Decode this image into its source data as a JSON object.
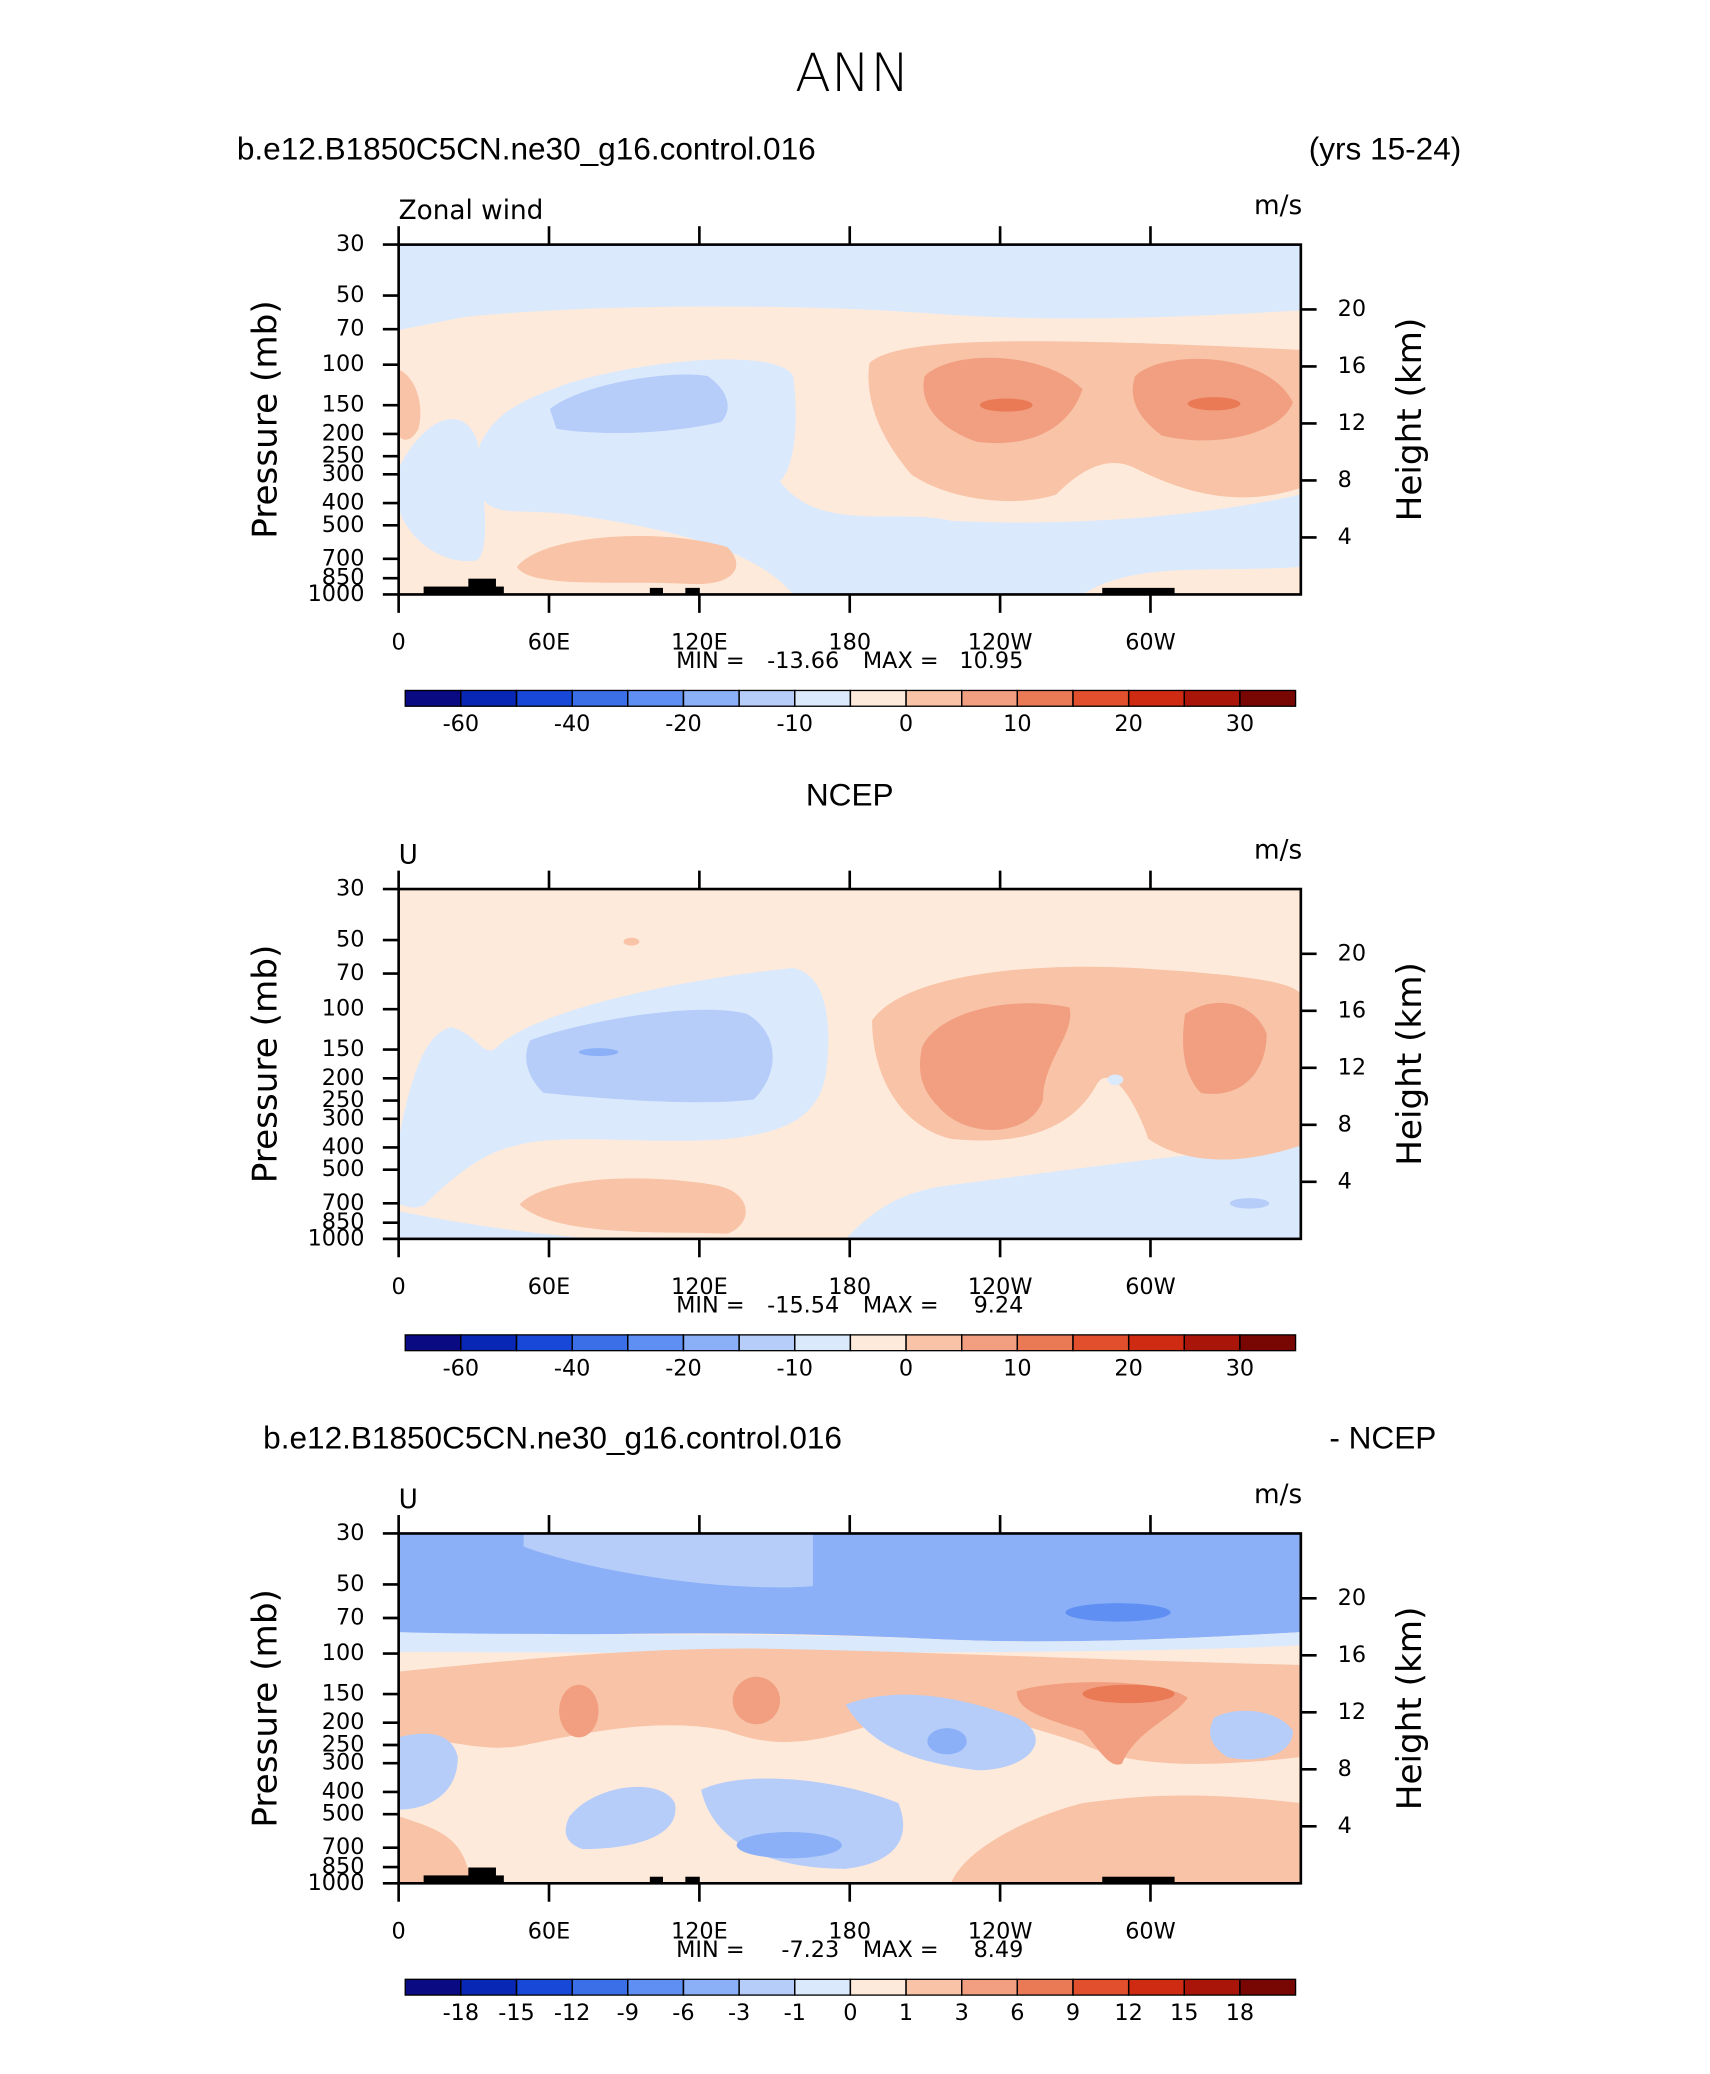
{
  "title": "ANN",
  "chart_data": [
    {
      "type": "contour",
      "title_left": "b.e12.B1850C5CN.ne30_g16.control.016",
      "title_right": "(yrs 15-24)",
      "label_left": "Zonal wind",
      "units": "m/s",
      "ylabel": "Pressure (mb)",
      "y2label": "Height (km)",
      "xlim": [
        0,
        360
      ],
      "xticks": [
        0,
        {
          "value": 60,
          "label": "60E"
        },
        {
          "value": 120,
          "label": "120E"
        },
        180,
        {
          "value": 240,
          "label": "120W"
        },
        {
          "value": 300,
          "label": "60W"
        }
      ],
      "ylim": [
        1000,
        30
      ],
      "ylog": true,
      "yticks": [
        30,
        50,
        70,
        100,
        150,
        200,
        250,
        300,
        400,
        500,
        700,
        850,
        1000
      ],
      "y2ticks": [
        4,
        8,
        12,
        16,
        20
      ],
      "min_label": "MIN =",
      "min": -13.66,
      "max_label": "MAX =",
      "max": 10.95,
      "colorbar": {
        "levels": [
          -60,
          -50,
          -40,
          -30,
          -20,
          -15,
          -10,
          -5,
          0,
          5,
          10,
          15,
          20,
          25,
          30
        ],
        "label_every": 2,
        "colors": [
          "#0a0a82",
          "#0727b4",
          "#1848d8",
          "#3a6fe8",
          "#5f8ff2",
          "#8bb0f7",
          "#b6cdfa",
          "#dbe9fc",
          "#feeadb",
          "#f8c3a6",
          "#f19f80",
          "#ea7a56",
          "#e24f2d",
          "#cf2a12",
          "#a91508",
          "#780603"
        ]
      }
    },
    {
      "type": "contour",
      "title": "NCEP",
      "label_left": "U",
      "units": "m/s",
      "ylabel": "Pressure (mb)",
      "y2label": "Height (km)",
      "xlim": [
        0,
        360
      ],
      "xticks": [
        0,
        {
          "value": 60,
          "label": "60E"
        },
        {
          "value": 120,
          "label": "120E"
        },
        180,
        {
          "value": 240,
          "label": "120W"
        },
        {
          "value": 300,
          "label": "60W"
        }
      ],
      "ylim": [
        1000,
        30
      ],
      "ylog": true,
      "yticks": [
        30,
        50,
        70,
        100,
        150,
        200,
        250,
        300,
        400,
        500,
        700,
        850,
        1000
      ],
      "y2ticks": [
        4,
        8,
        12,
        16,
        20
      ],
      "min_label": "MIN =",
      "min": -15.54,
      "max_label": "MAX =",
      "max": 9.24,
      "colorbar": {
        "levels": [
          -60,
          -50,
          -40,
          -30,
          -20,
          -15,
          -10,
          -5,
          0,
          5,
          10,
          15,
          20,
          25,
          30
        ],
        "label_every": 2,
        "colors": [
          "#0a0a82",
          "#0727b4",
          "#1848d8",
          "#3a6fe8",
          "#5f8ff2",
          "#8bb0f7",
          "#b6cdfa",
          "#dbe9fc",
          "#feeadb",
          "#f8c3a6",
          "#f19f80",
          "#ea7a56",
          "#e24f2d",
          "#cf2a12",
          "#a91508",
          "#780603"
        ]
      }
    },
    {
      "type": "contour",
      "title_left": "b.e12.B1850C5CN.ne30_g16.control.016",
      "title_right": "- NCEP",
      "label_left": "U",
      "units": "m/s",
      "ylabel": "Pressure (mb)",
      "y2label": "Height (km)",
      "xlim": [
        0,
        360
      ],
      "xticks": [
        0,
        {
          "value": 60,
          "label": "60E"
        },
        {
          "value": 120,
          "label": "120E"
        },
        180,
        {
          "value": 240,
          "label": "120W"
        },
        {
          "value": 300,
          "label": "60W"
        }
      ],
      "ylim": [
        1000,
        30
      ],
      "ylog": true,
      "yticks": [
        30,
        50,
        70,
        100,
        150,
        200,
        250,
        300,
        400,
        500,
        700,
        850,
        1000
      ],
      "y2ticks": [
        4,
        8,
        12,
        16,
        20
      ],
      "min_label": "MIN =",
      "min": -7.23,
      "max_label": "MAX =",
      "max": 8.49,
      "colorbar": {
        "levels": [
          -18,
          -15,
          -12,
          -9,
          -6,
          -3,
          -1,
          0,
          1,
          3,
          6,
          9,
          12,
          15,
          18
        ],
        "label_every": 1,
        "colors": [
          "#0a0a82",
          "#0727b4",
          "#1848d8",
          "#3a6fe8",
          "#5f8ff2",
          "#8bb0f7",
          "#b6cdfa",
          "#dbe9fc",
          "#feeadb",
          "#f8c3a6",
          "#f19f80",
          "#ea7a56",
          "#e24f2d",
          "#cf2a12",
          "#a91508",
          "#780603"
        ]
      }
    }
  ]
}
